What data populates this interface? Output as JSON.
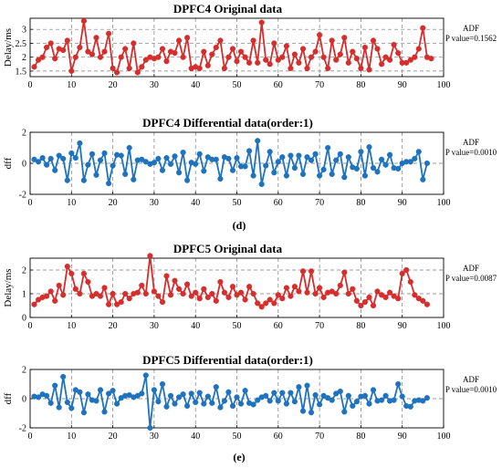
{
  "figure_labels": [
    "(d)",
    "(e)"
  ],
  "chart_data": [
    {
      "type": "line",
      "title": "DPFC4  Original data",
      "xlabel": "",
      "ylabel": "Delay/ms",
      "xlim": [
        0,
        100
      ],
      "ylim": [
        1.3,
        3.4
      ],
      "xticks": [
        0,
        10,
        20,
        30,
        40,
        50,
        60,
        70,
        80,
        90,
        100
      ],
      "yticks": [
        1.5,
        2,
        2.5,
        3
      ],
      "grid": "dashed-horizontal-and-vertical",
      "color": "#d62d2d",
      "annotation": [
        "ADF",
        "P value=0.1562"
      ],
      "series": [
        {
          "x_start": 1,
          "values": [
            1.65,
            1.9,
            2.0,
            2.35,
            2.5,
            1.95,
            2.3,
            2.25,
            2.6,
            1.5,
            2.0,
            2.35,
            3.3,
            2.2,
            2.1,
            2.7,
            2.0,
            2.2,
            2.85,
            1.6,
            1.45,
            2.0,
            2.3,
            1.6,
            2.5,
            1.45,
            1.65,
            1.9,
            2.0,
            1.95,
            2.0,
            2.3,
            1.85,
            2.2,
            2.15,
            2.6,
            2.0,
            2.7,
            1.6,
            1.65,
            1.6,
            2.2,
            1.7,
            2.1,
            2.35,
            2.6,
            1.6,
            2.0,
            2.3,
            1.85,
            2.2,
            2.0,
            1.8,
            2.6,
            1.8,
            3.25,
            1.9,
            1.75,
            2.5,
            1.9,
            2.0,
            2.4,
            1.6,
            2.1,
            1.8,
            2.3,
            1.6,
            2.0,
            2.2,
            2.8,
            2.0,
            1.6,
            2.6,
            1.9,
            2.1,
            2.7,
            1.8,
            2.2,
            1.95,
            1.6,
            2.35,
            1.55,
            2.6,
            2.3,
            1.75,
            2.0,
            1.9,
            2.45,
            2.15,
            1.8,
            1.8,
            1.9,
            2.0,
            2.3,
            3.05,
            2.0,
            1.95
          ]
        }
      ]
    },
    {
      "type": "line",
      "title": "DPFC4  Differential data(order:1)",
      "xlabel": "",
      "ylabel": "dff",
      "xlim": [
        0,
        100
      ],
      "ylim": [
        -2,
        2
      ],
      "xticks": [
        0,
        10,
        20,
        30,
        40,
        50,
        60,
        70,
        80,
        90,
        100
      ],
      "yticks": [
        -2,
        0,
        2
      ],
      "grid": "dashed-horizontal-and-vertical",
      "color": "#1f73be",
      "annotation": [
        "ADF",
        "P value=0.0010"
      ],
      "series": [
        {
          "x_start": 1,
          "values": [
            0.25,
            0.1,
            0.35,
            -0.1,
            0.3,
            -0.45,
            0.5,
            0.3,
            -1.1,
            0.65,
            0.35,
            1.3,
            -1.1,
            -0.1,
            0.6,
            -0.75,
            0.2,
            0.65,
            -1.3,
            -0.15,
            0.55,
            0.5,
            -0.7,
            1.0,
            -1.05,
            0.2,
            0.25,
            0.1,
            -0.05,
            0.05,
            0.3,
            -0.45,
            0.35,
            -0.05,
            0.45,
            -0.6,
            0.7,
            -1.1,
            0.05,
            -0.05,
            0.6,
            -0.5,
            0.4,
            0.25,
            0.25,
            -1.0,
            0.4,
            0.3,
            -0.45,
            0.35,
            -0.2,
            -0.2,
            0.8,
            -0.8,
            1.45,
            -1.35,
            -0.15,
            0.75,
            -0.6,
            0.1,
            0.4,
            -0.8,
            0.5,
            -0.3,
            0.5,
            -0.7,
            0.4,
            0.2,
            0.6,
            -0.8,
            -0.4,
            1.0,
            -0.7,
            0.2,
            0.6,
            -0.9,
            0.4,
            -0.25,
            -0.35,
            0.75,
            -0.8,
            1.05,
            -0.3,
            -0.55,
            0.25,
            -0.1,
            0.55,
            -0.3,
            -0.35,
            0.0,
            0.1,
            0.1,
            0.3,
            0.75,
            -1.05,
            0.0
          ]
        }
      ]
    },
    {
      "type": "line",
      "title": "DPFC5  Original data",
      "xlabel": "",
      "ylabel": "Delay/ms",
      "xlim": [
        0,
        100
      ],
      "ylim": [
        0,
        2.5
      ],
      "xticks": [
        0,
        10,
        20,
        30,
        40,
        50,
        60,
        70,
        80,
        90,
        100
      ],
      "yticks": [
        0,
        1,
        2
      ],
      "grid": "dashed-horizontal-and-vertical",
      "color": "#d62d2d",
      "annotation": [
        "ADF",
        "P value=0.0087"
      ],
      "series": [
        {
          "x_start": 1,
          "values": [
            0.55,
            0.75,
            0.85,
            0.9,
            1.1,
            0.7,
            1.35,
            0.95,
            2.15,
            1.85,
            1.2,
            1.0,
            1.85,
            1.5,
            0.9,
            1.0,
            0.9,
            1.25,
            0.55,
            1.0,
            0.55,
            0.65,
            1.0,
            0.8,
            1.0,
            1.05,
            1.35,
            1.0,
            2.6,
            1.1,
            0.9,
            0.65,
            1.75,
            0.95,
            1.55,
            1.2,
            1.0,
            1.4,
            0.9,
            1.05,
            0.8,
            1.2,
            0.85,
            1.0,
            0.7,
            1.5,
            1.05,
            0.85,
            1.3,
            0.95,
            1.05,
            0.75,
            1.3,
            1.0,
            0.6,
            0.45,
            0.6,
            0.75,
            0.6,
            0.95,
            0.8,
            1.25,
            0.9,
            1.3,
            1.1,
            1.95,
            1.05,
            1.95,
            1.0,
            1.25,
            0.85,
            1.05,
            1.1,
            1.0,
            1.35,
            1.9,
            1.0,
            1.2,
            0.7,
            0.5,
            0.65,
            0.85,
            0.5,
            1.1,
            0.95,
            0.85,
            1.05,
            0.9,
            0.8,
            1.85,
            2.0,
            1.5,
            0.95,
            0.8,
            0.7,
            0.55
          ]
        }
      ]
    },
    {
      "type": "line",
      "title": "DPFC5  Differential data(order:1)",
      "xlabel": "",
      "ylabel": "dff",
      "xlim": [
        0,
        100
      ],
      "ylim": [
        -2,
        2
      ],
      "xticks": [
        0,
        10,
        20,
        30,
        40,
        50,
        60,
        70,
        80,
        90,
        100
      ],
      "yticks": [
        -2,
        0,
        2
      ],
      "grid": "dashed-horizontal-and-vertical",
      "color": "#1f73be",
      "annotation": [
        "ADF",
        "P value=0.0010"
      ],
      "series": [
        {
          "x_start": 1,
          "values": [
            0.15,
            0.1,
            0.3,
            0.2,
            -0.3,
            0.9,
            -0.6,
            1.5,
            -0.25,
            -0.65,
            0.6,
            0.45,
            -0.95,
            0.3,
            -0.1,
            -0.15,
            0.6,
            -0.9,
            0.35,
            0.55,
            -0.35,
            0.05,
            0.2,
            0.25,
            0.1,
            0.2,
            0.35,
            1.6,
            -2.0,
            0.6,
            -0.2,
            1.0,
            -0.55,
            0.2,
            -0.35,
            0.1,
            0.3,
            -0.5,
            0.35,
            -0.25,
            0.4,
            -0.35,
            0.15,
            -0.3,
            0.8,
            -0.6,
            -0.15,
            0.45,
            -0.5,
            0.1,
            -0.35,
            0.55,
            -0.3,
            -0.4,
            -0.1,
            0.1,
            0.2,
            -0.15,
            0.4,
            -0.15,
            0.4,
            -0.35,
            0.4,
            -0.2,
            0.8,
            -0.85,
            0.9,
            -0.95,
            0.25,
            -0.4,
            0.2,
            0.05,
            -0.1,
            0.35,
            0.5,
            -0.9,
            0.2,
            -0.5,
            -0.2,
            0.15,
            0.2,
            -0.35,
            0.6,
            -0.15,
            -0.1,
            0.2,
            -0.15,
            -0.1,
            1.0,
            0.15,
            -0.5,
            -0.55,
            -0.15,
            -0.1,
            -0.15,
            0.05
          ]
        }
      ]
    }
  ]
}
